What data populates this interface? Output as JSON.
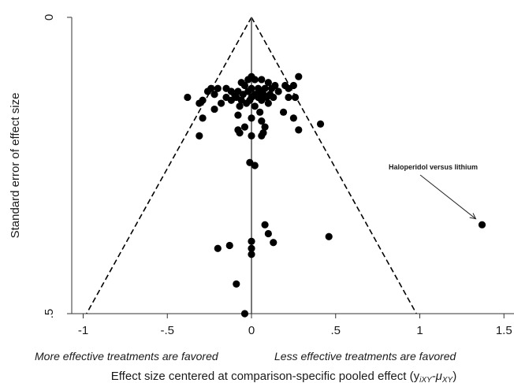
{
  "chart_data": {
    "type": "scatter",
    "subtype": "comparison-adjusted funnel plot",
    "title": "",
    "xlabel": "Effect size centered at comparison-specific pooled effect (y",
    "xlabel_sub1": "iXY",
    "xlabel_dash": "-μ",
    "xlabel_sub2": "XY",
    "xlabel_close": ")",
    "ylabel": "Standard error of effect size",
    "xlim": [
      -1.1,
      1.55
    ],
    "ylim": [
      0,
      0.5
    ],
    "y_reversed": true,
    "x_ticks": [
      -1,
      -0.5,
      0,
      0.5,
      1,
      1.5
    ],
    "x_tick_labels": [
      "-1",
      "-.5",
      "0",
      ".5",
      "1",
      "1.5"
    ],
    "y_ticks": [
      0,
      0.5
    ],
    "y_tick_labels": [
      "0",
      ".5"
    ],
    "reference_line_x": 0,
    "funnel": {
      "apex_se": 0,
      "base_se": 0.5,
      "multiplier": 1.96,
      "style": "dashed"
    },
    "left_favor_label": "More effective treatments are favored",
    "right_favor_label": "Less effective treatments are favored",
    "annotations": [
      {
        "text": "Haloperidol versus lithium",
        "x": 1.37,
        "y": 0.348
      }
    ],
    "points": [
      {
        "x": 0.0,
        "y": 0.1
      },
      {
        "x": 0.28,
        "y": 0.1
      },
      {
        "x": -0.02,
        "y": 0.105
      },
      {
        "x": 0.02,
        "y": 0.105
      },
      {
        "x": 0.06,
        "y": 0.105
      },
      {
        "x": -0.06,
        "y": 0.11
      },
      {
        "x": 0.1,
        "y": 0.11
      },
      {
        "x": 0.2,
        "y": 0.115
      },
      {
        "x": 0.25,
        "y": 0.115
      },
      {
        "x": -0.04,
        "y": 0.115
      },
      {
        "x": 0.14,
        "y": 0.115
      },
      {
        "x": -0.24,
        "y": 0.12
      },
      {
        "x": -0.2,
        "y": 0.12
      },
      {
        "x": -0.15,
        "y": 0.12
      },
      {
        "x": 0.0,
        "y": 0.12
      },
      {
        "x": 0.04,
        "y": 0.12
      },
      {
        "x": 0.08,
        "y": 0.12
      },
      {
        "x": 0.12,
        "y": 0.12
      },
      {
        "x": 0.22,
        "y": 0.12
      },
      {
        "x": -0.26,
        "y": 0.125
      },
      {
        "x": -0.12,
        "y": 0.125
      },
      {
        "x": -0.08,
        "y": 0.125
      },
      {
        "x": -0.02,
        "y": 0.125
      },
      {
        "x": 0.05,
        "y": 0.125
      },
      {
        "x": 0.16,
        "y": 0.125
      },
      {
        "x": -0.22,
        "y": 0.13
      },
      {
        "x": -0.1,
        "y": 0.13
      },
      {
        "x": -0.05,
        "y": 0.13
      },
      {
        "x": 0.02,
        "y": 0.13
      },
      {
        "x": 0.07,
        "y": 0.13
      },
      {
        "x": 0.11,
        "y": 0.13
      },
      {
        "x": -0.38,
        "y": 0.135
      },
      {
        "x": -0.15,
        "y": 0.135
      },
      {
        "x": -0.09,
        "y": 0.135
      },
      {
        "x": 0.0,
        "y": 0.135
      },
      {
        "x": 0.04,
        "y": 0.135
      },
      {
        "x": 0.09,
        "y": 0.135
      },
      {
        "x": 0.13,
        "y": 0.135
      },
      {
        "x": 0.22,
        "y": 0.135
      },
      {
        "x": 0.26,
        "y": 0.135
      },
      {
        "x": -0.29,
        "y": 0.14
      },
      {
        "x": -0.12,
        "y": 0.14
      },
      {
        "x": -0.06,
        "y": 0.14
      },
      {
        "x": -0.01,
        "y": 0.14
      },
      {
        "x": 0.06,
        "y": 0.14
      },
      {
        "x": -0.31,
        "y": 0.145
      },
      {
        "x": -0.18,
        "y": 0.145
      },
      {
        "x": -0.03,
        "y": 0.145
      },
      {
        "x": 0.1,
        "y": 0.145
      },
      {
        "x": -0.07,
        "y": 0.15
      },
      {
        "x": 0.02,
        "y": 0.15
      },
      {
        "x": -0.22,
        "y": 0.155
      },
      {
        "x": 0.05,
        "y": 0.16
      },
      {
        "x": 0.19,
        "y": 0.16
      },
      {
        "x": -0.08,
        "y": 0.165
      },
      {
        "x": -0.29,
        "y": 0.17
      },
      {
        "x": 0.25,
        "y": 0.17
      },
      {
        "x": 0.0,
        "y": 0.17
      },
      {
        "x": 0.06,
        "y": 0.175
      },
      {
        "x": 0.41,
        "y": 0.18
      },
      {
        "x": -0.04,
        "y": 0.185
      },
      {
        "x": 0.08,
        "y": 0.185
      },
      {
        "x": -0.08,
        "y": 0.19
      },
      {
        "x": 0.28,
        "y": 0.19
      },
      {
        "x": -0.07,
        "y": 0.195
      },
      {
        "x": 0.07,
        "y": 0.195
      },
      {
        "x": -0.31,
        "y": 0.2
      },
      {
        "x": 0.0,
        "y": 0.2
      },
      {
        "x": 0.06,
        "y": 0.2
      },
      {
        "x": -0.01,
        "y": 0.245
      },
      {
        "x": 0.02,
        "y": 0.25
      },
      {
        "x": 1.37,
        "y": 0.35
      },
      {
        "x": 0.08,
        "y": 0.35
      },
      {
        "x": 0.1,
        "y": 0.365
      },
      {
        "x": 0.46,
        "y": 0.37
      },
      {
        "x": 0.0,
        "y": 0.378
      },
      {
        "x": 0.13,
        "y": 0.38
      },
      {
        "x": -0.13,
        "y": 0.385
      },
      {
        "x": 0.0,
        "y": 0.39
      },
      {
        "x": -0.2,
        "y": 0.39
      },
      {
        "x": 0.0,
        "y": 0.4
      },
      {
        "x": -0.09,
        "y": 0.45
      },
      {
        "x": -0.04,
        "y": 0.5
      }
    ]
  }
}
